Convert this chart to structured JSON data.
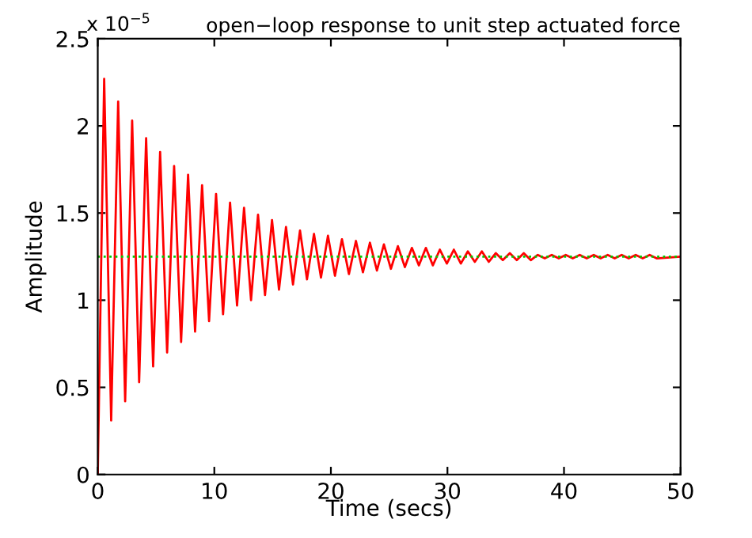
{
  "chart_data": {
    "type": "line",
    "title": "open−loop response to unit step actuated force",
    "xlabel": "Time (secs)",
    "ylabel": "Amplitude",
    "annotations": [
      "x 10$^{−5}$"
    ],
    "xlim": [
      0,
      50
    ],
    "xticks": [
      0,
      10,
      20,
      30,
      40,
      50
    ],
    "ylim": [
      0,
      2.5
    ],
    "yticks": [
      0,
      0.5,
      1,
      1.5,
      2,
      2.5
    ],
    "grid": false,
    "legend": false,
    "marker": "none",
    "line_style": "solid",
    "ref_lines": [
      {
        "axis": "y",
        "value": 1.25,
        "color": "#00cc00",
        "line_style": "dotted"
      }
    ],
    "series": [
      {
        "color": "#ff0000",
        "x": [
          0,
          0.55,
          1.15,
          1.75,
          2.35,
          2.95,
          3.55,
          4.15,
          4.75,
          5.35,
          5.95,
          6.55,
          7.15,
          7.75,
          8.35,
          8.95,
          9.55,
          10.15,
          10.75,
          11.35,
          11.95,
          12.55,
          13.15,
          13.75,
          14.35,
          14.95,
          15.55,
          16.15,
          16.75,
          17.35,
          17.95,
          18.55,
          19.15,
          19.75,
          20.35,
          20.95,
          21.55,
          22.15,
          22.75,
          23.35,
          23.95,
          24.55,
          25.15,
          25.75,
          26.35,
          26.95,
          27.55,
          28.15,
          28.75,
          29.35,
          29.95,
          30.55,
          31.15,
          31.75,
          32.35,
          32.95,
          33.55,
          34.15,
          34.75,
          35.35,
          35.95,
          36.55,
          37.15,
          37.75,
          38.35,
          38.95,
          39.55,
          40.15,
          40.75,
          41.35,
          41.95,
          42.55,
          43.15,
          43.75,
          44.35,
          44.95,
          45.55,
          46.15,
          46.75,
          47.35,
          47.95,
          50
        ],
        "values": [
          0,
          2.27,
          0.31,
          2.14,
          0.42,
          2.03,
          0.53,
          1.93,
          0.62,
          1.85,
          0.7,
          1.77,
          0.76,
          1.72,
          0.82,
          1.66,
          0.88,
          1.61,
          0.92,
          1.56,
          0.97,
          1.53,
          1.0,
          1.49,
          1.03,
          1.46,
          1.06,
          1.42,
          1.09,
          1.4,
          1.12,
          1.38,
          1.13,
          1.37,
          1.14,
          1.35,
          1.15,
          1.34,
          1.16,
          1.33,
          1.17,
          1.32,
          1.18,
          1.31,
          1.19,
          1.3,
          1.2,
          1.3,
          1.2,
          1.29,
          1.21,
          1.29,
          1.21,
          1.28,
          1.22,
          1.28,
          1.22,
          1.27,
          1.23,
          1.27,
          1.23,
          1.27,
          1.23,
          1.26,
          1.24,
          1.26,
          1.24,
          1.26,
          1.24,
          1.26,
          1.24,
          1.26,
          1.24,
          1.26,
          1.24,
          1.26,
          1.24,
          1.26,
          1.24,
          1.26,
          1.24,
          1.25
        ]
      }
    ]
  }
}
